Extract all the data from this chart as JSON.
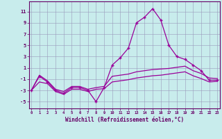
{
  "x": [
    0,
    1,
    2,
    3,
    4,
    5,
    6,
    7,
    8,
    9,
    10,
    11,
    12,
    13,
    14,
    15,
    16,
    17,
    18,
    19,
    20,
    21,
    22,
    23
  ],
  "line_main": [
    -3,
    -0.5,
    -1.5,
    -3,
    -3.5,
    -2.5,
    -2.5,
    -3,
    -5,
    -2.5,
    1.5,
    2.8,
    4.5,
    9,
    10,
    11.5,
    9.5,
    5,
    3,
    2.5,
    1.5,
    0.5,
    -1.2,
    -1.2
  ],
  "line_upper": [
    -3,
    -0.3,
    -1.3,
    -2.8,
    -3.2,
    -2.3,
    -2.3,
    -2.8,
    -2.5,
    -2.3,
    -0.5,
    -0.3,
    -0.1,
    0.3,
    0.5,
    0.7,
    0.8,
    0.9,
    1.1,
    1.3,
    0.5,
    0.0,
    -0.8,
    -0.9
  ],
  "line_lower": [
    -3,
    -1.5,
    -1.8,
    -3.2,
    -3.7,
    -2.8,
    -2.8,
    -3.2,
    -2.8,
    -2.7,
    -1.5,
    -1.3,
    -1.1,
    -0.8,
    -0.6,
    -0.4,
    -0.3,
    -0.1,
    0.1,
    0.3,
    -0.4,
    -0.9,
    -1.5,
    -1.4
  ],
  "main_color": "#990099",
  "bg_color": "#c8ecec",
  "grid_color": "#9999bb",
  "axis_color": "#660066",
  "xlabel": "Windchill (Refroidissement éolien,°C)",
  "yticks": [
    -5,
    -3,
    -1,
    1,
    3,
    5,
    7,
    9,
    11
  ],
  "xticks": [
    0,
    1,
    2,
    3,
    4,
    5,
    6,
    7,
    8,
    9,
    10,
    11,
    12,
    13,
    14,
    15,
    16,
    17,
    18,
    19,
    20,
    21,
    22,
    23
  ],
  "ylim": [
    -6.2,
    12.8
  ],
  "xlim": [
    -0.3,
    23.3
  ]
}
